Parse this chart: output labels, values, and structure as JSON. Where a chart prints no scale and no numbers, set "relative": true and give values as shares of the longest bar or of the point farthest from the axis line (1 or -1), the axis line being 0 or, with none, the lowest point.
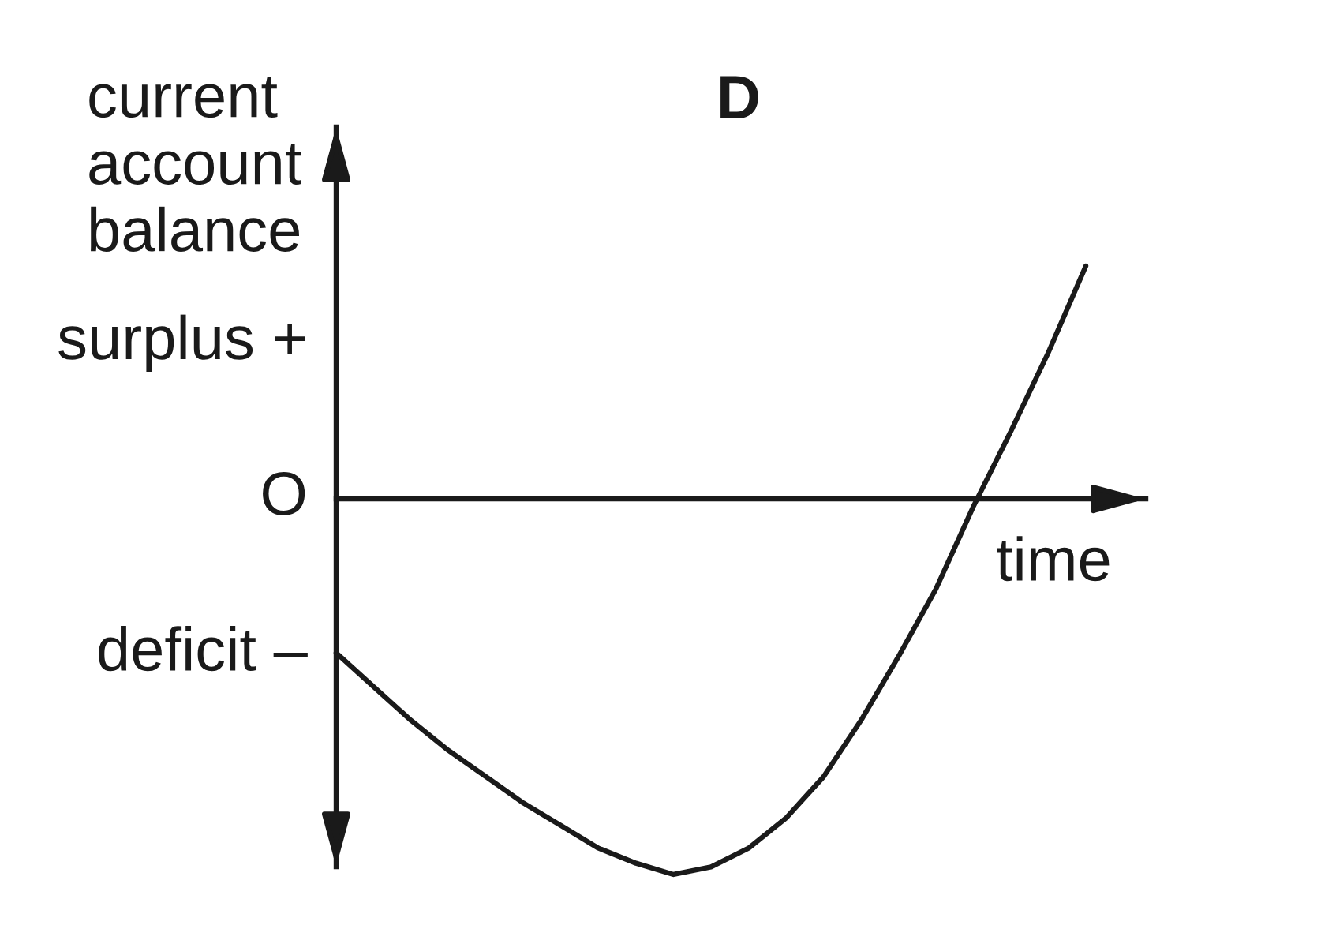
{
  "chart_data": {
    "type": "line",
    "title": "D",
    "xlabel": "time",
    "ylabel": "current\naccount\nbalance",
    "relative": true,
    "categories": [
      null,
      null,
      null,
      null,
      null,
      null,
      null,
      null,
      null,
      null,
      null,
      null,
      null,
      null,
      null,
      null,
      null,
      null,
      null,
      null,
      null
    ],
    "series": [
      {
        "color": "#1a1a1a",
        "values": [
          -0.41,
          -0.5,
          -0.59,
          -0.67,
          -0.74,
          -0.81,
          -0.87,
          -0.93,
          -0.97,
          -1.0,
          -0.98,
          -0.93,
          -0.85,
          -0.74,
          -0.59,
          -0.42,
          -0.24,
          -0.02,
          0.18,
          0.39,
          0.62
        ]
      }
    ],
    "annotations": [
      "surplus +",
      "O",
      "deficit –"
    ],
    "legend": false,
    "marker": "none",
    "line_style": "solid"
  }
}
